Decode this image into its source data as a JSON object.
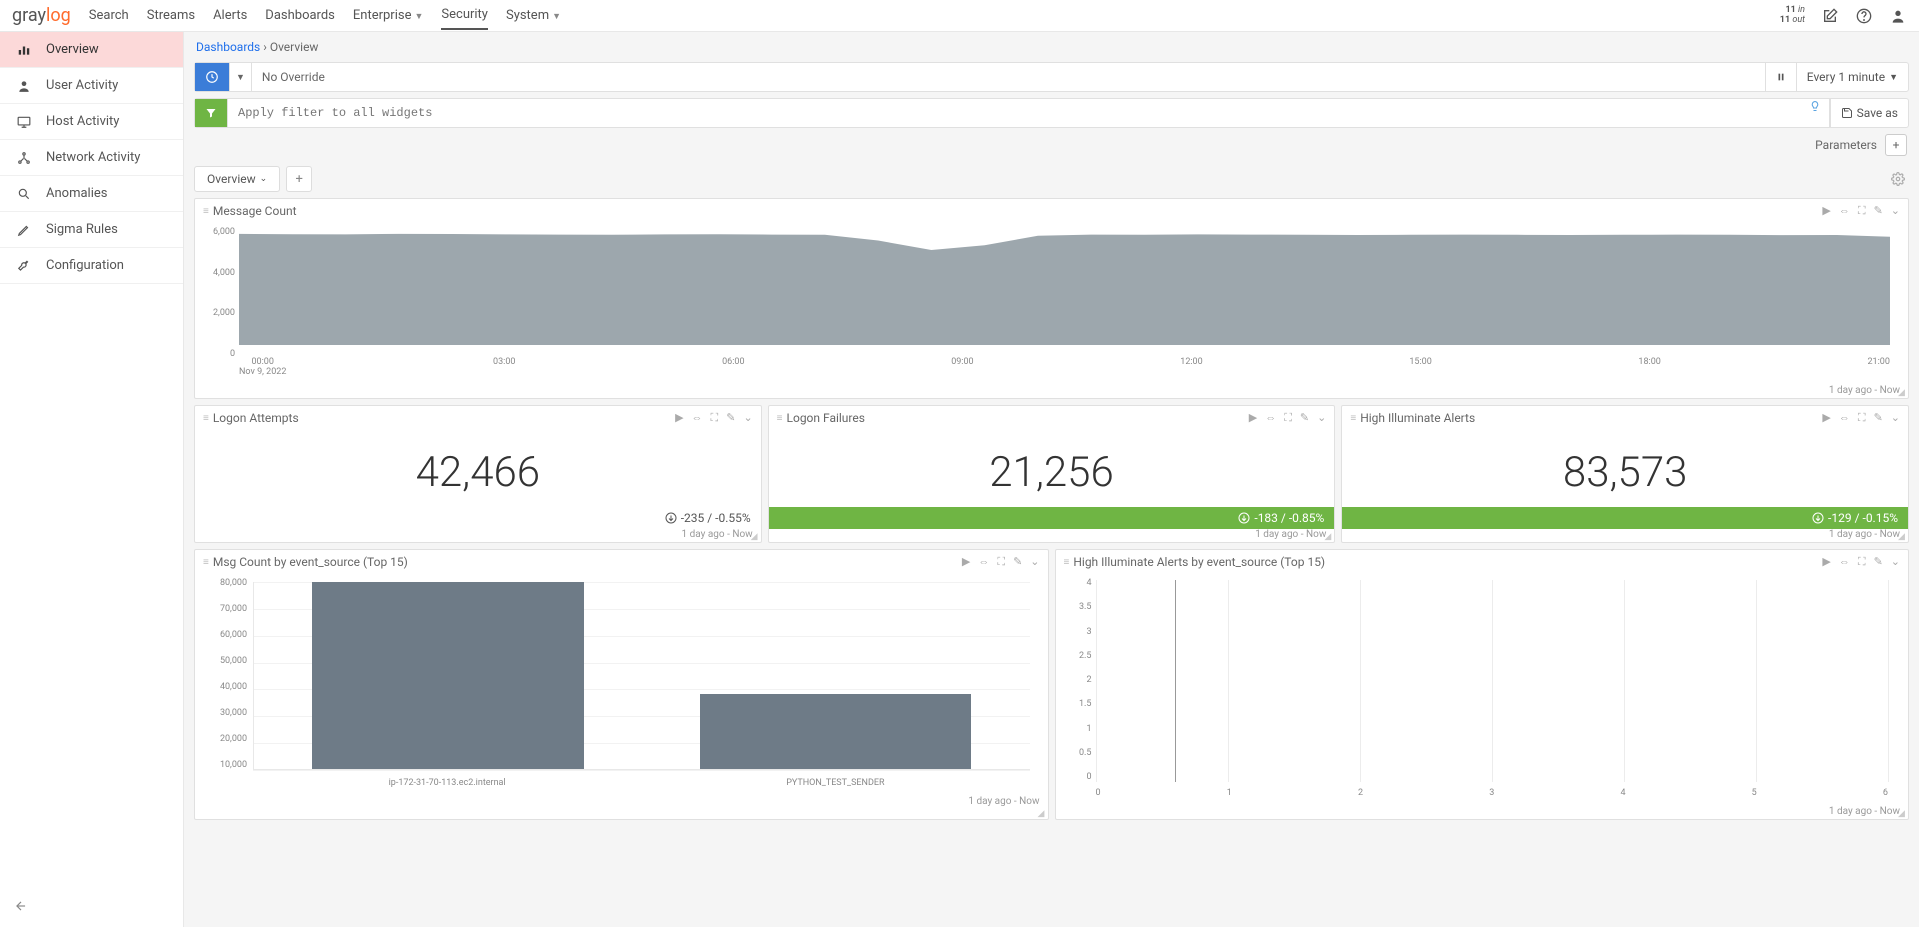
{
  "brand": {
    "part1": "gray",
    "part2": "log"
  },
  "nav": {
    "items": [
      "Search",
      "Streams",
      "Alerts",
      "Dashboards",
      "Enterprise",
      "Security",
      "System"
    ],
    "dropdownIdx": [
      4,
      6
    ],
    "activeIdx": 5
  },
  "topright": {
    "in_count": "11",
    "in_label": "in",
    "out_count": "11",
    "out_label": "out"
  },
  "sidebar": {
    "items": [
      {
        "label": "Overview",
        "icon": "chart"
      },
      {
        "label": "User Activity",
        "icon": "user"
      },
      {
        "label": "Host Activity",
        "icon": "monitor"
      },
      {
        "label": "Network Activity",
        "icon": "network"
      },
      {
        "label": "Anomalies",
        "icon": "search"
      },
      {
        "label": "Sigma Rules",
        "icon": "pencil"
      },
      {
        "label": "Configuration",
        "icon": "wrench"
      }
    ],
    "activeIdx": 0
  },
  "breadcrumb": {
    "root": "Dashboards",
    "current": "Overview"
  },
  "controls": {
    "override_text": "No Override",
    "filter_placeholder": "Apply filter to all widgets",
    "refresh_label": "Every 1 minute",
    "saveas_label": "Save as",
    "parameters_label": "Parameters"
  },
  "tabs": {
    "active": "Overview"
  },
  "widgets": {
    "area": {
      "title": "Message Count",
      "yticks": [
        "6,000",
        "4,000",
        "2,000",
        "0"
      ],
      "xticks": [
        "00:00",
        "03:00",
        "06:00",
        "09:00",
        "12:00",
        "15:00",
        "18:00",
        "21:00"
      ],
      "xsub": "Nov 9, 2022",
      "fill_color": "#9da7ad",
      "series_max": 6000,
      "series": [
        5850,
        5830,
        5820,
        5850,
        5840,
        5820,
        5810,
        5800,
        5820,
        5830,
        5810,
        5800,
        5500,
        5000,
        5250,
        5750,
        5810,
        5800,
        5820,
        5810,
        5800,
        5790,
        5800,
        5810,
        5800,
        5790,
        5800,
        5810,
        5800,
        5780,
        5790,
        5700
      ],
      "footer": "1 day ago - Now"
    },
    "stats": [
      {
        "title": "Logon Attempts",
        "value": "42,466",
        "delta": "-235 / -0.55%",
        "style": "plain"
      },
      {
        "title": "Logon Failures",
        "value": "21,256",
        "delta": "-183 / -0.85%",
        "style": "green"
      },
      {
        "title": "High Illuminate Alerts",
        "value": "83,573",
        "delta": "-129 / -0.15%",
        "style": "green"
      }
    ],
    "stat_footer": "1 day ago - Now",
    "bar": {
      "title": "Msg Count by event_source (Top 15)",
      "ymax": 80000,
      "yticks": [
        "80,000",
        "70,000",
        "60,000",
        "50,000",
        "40,000",
        "30,000",
        "20,000",
        "10,000"
      ],
      "categories": [
        "ip-172-31-70-113.ec2.internal",
        "PYTHON_TEST_SENDER"
      ],
      "values": [
        80000,
        32000
      ],
      "bar_color": "#6e7b87",
      "footer": "1 day ago - Now"
    },
    "line": {
      "title": "High Illuminate Alerts by event_source (Top 15)",
      "yticks": [
        "4",
        "3.5",
        "3",
        "2.5",
        "2",
        "1.5",
        "1",
        "0.5",
        "0"
      ],
      "xticks": [
        "0",
        "1",
        "2",
        "3",
        "4",
        "5",
        "6"
      ],
      "footer": "1 day ago - Now"
    }
  }
}
